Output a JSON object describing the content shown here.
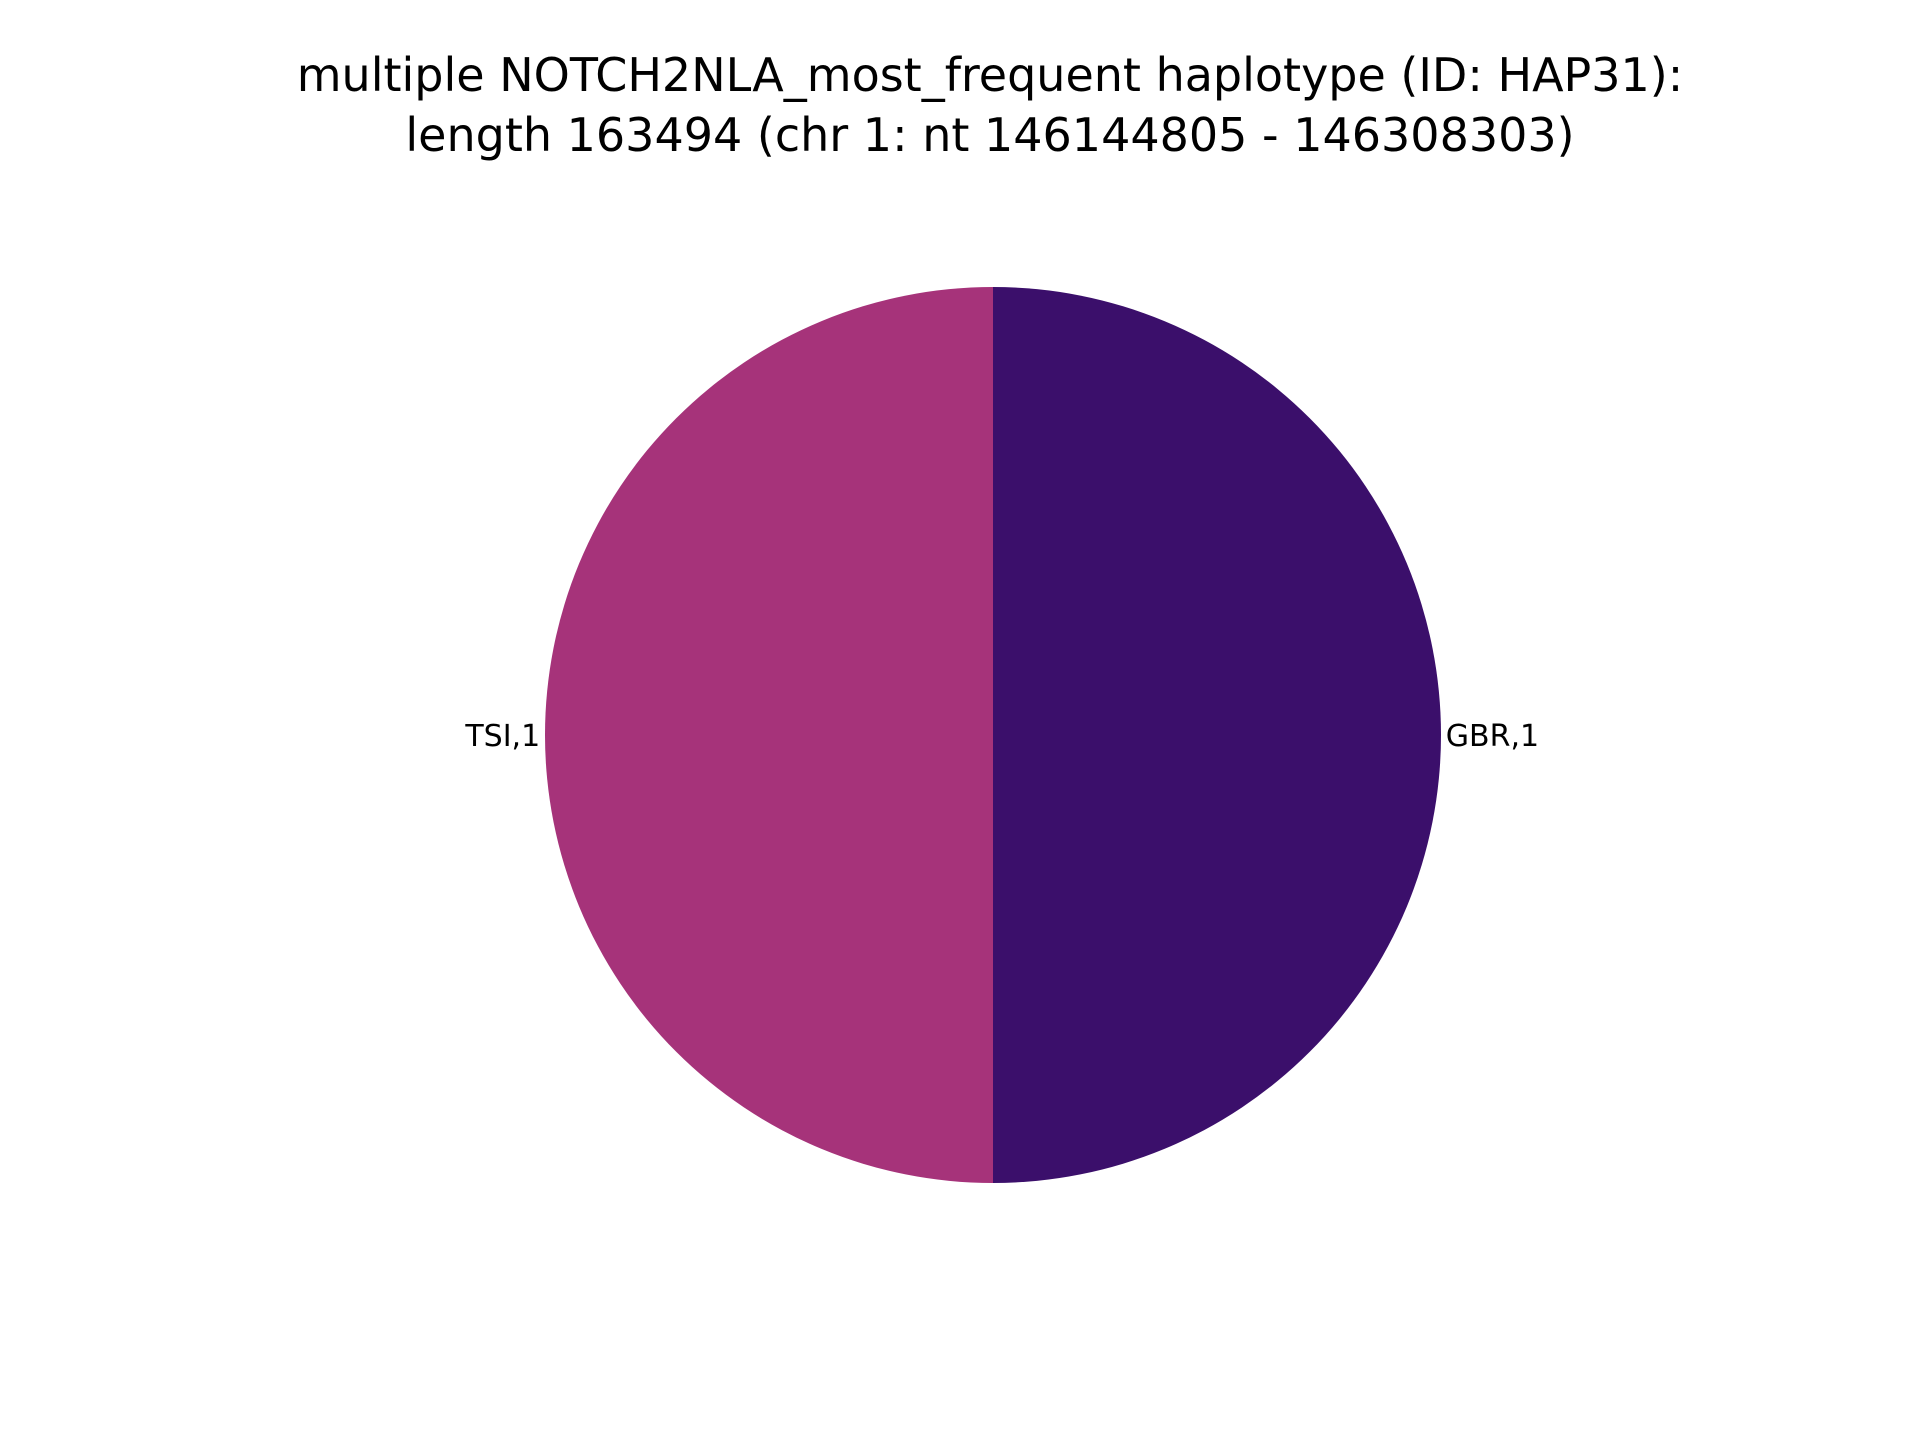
{
  "chart_data": {
    "type": "pie",
    "title_line1": "multiple NOTCH2NLA_most_frequent haplotype (ID: HAP31):",
    "title_line2": "length 163494 (chr 1: nt 146144805 - 146308303)",
    "slices": [
      {
        "label": "GBR,1",
        "value": 1,
        "color": "#3b0f6b"
      },
      {
        "label": "TSI,1",
        "value": 1,
        "color": "#a6337a"
      }
    ],
    "start_angle_deg": 90,
    "direction": "clockwise"
  }
}
